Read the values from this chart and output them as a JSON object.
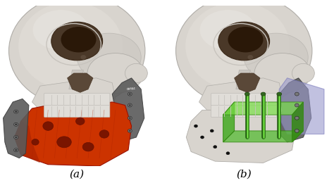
{
  "background_color": "#ffffff",
  "label_a": "(a)",
  "label_b": "(b)",
  "label_fontsize": 11,
  "figsize": [
    4.74,
    2.6
  ],
  "dpi": 100,
  "panel_a": {
    "skull_color": "#d8d4ce",
    "skull_dark": "#b8b4ae",
    "skull_shadow": "#c0bcb6",
    "eye_socket": "#4a3828",
    "eye_inner": "#2a1808",
    "teeth_color": "#e8e5e0",
    "implant_color": "#cc3300",
    "implant_dark": "#991100",
    "implant_hole": "#7a1500",
    "plate_color": "#5a5a5a",
    "plate_light": "#787878",
    "plate_dark": "#3a3a3a"
  },
  "panel_b": {
    "skull_color": "#d8d4ce",
    "skull_dark": "#b8b4ae",
    "eye_socket": "#4a3828",
    "eye_inner": "#2a1808",
    "teeth_color": "#e8e5e0",
    "guide_color": "#55bb33",
    "guide_dark": "#338811",
    "guide_alpha": 0.75,
    "cut_color": "#9999cc",
    "cut_alpha": 0.6,
    "screw_color": "#336622",
    "plate_color": "#5a5a5a",
    "dot_color": "#111111"
  }
}
